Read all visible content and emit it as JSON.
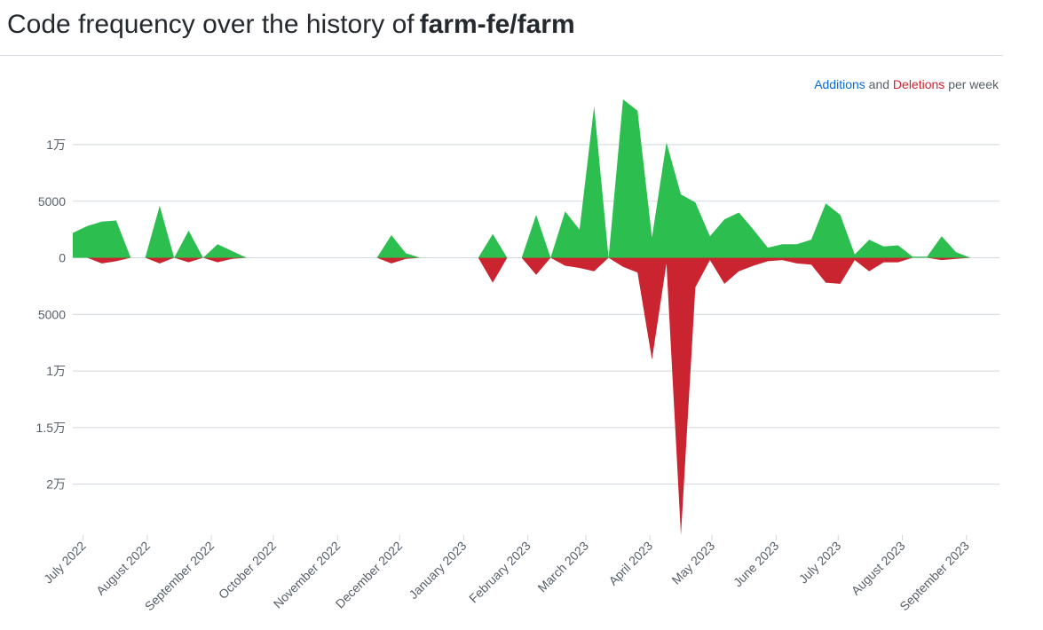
{
  "header": {
    "title_prefix": "Code frequency over the history of",
    "repo": "farm-fe/farm"
  },
  "legend": {
    "additions": "Additions",
    "and": "and",
    "deletions": "Deletions",
    "suffix": "per week"
  },
  "colors": {
    "additions": "#2cbe4e",
    "deletions": "#cb2431",
    "grid": "#d0d7de"
  },
  "chart_data": {
    "type": "area",
    "y_ticks": [
      {
        "value": 10000,
        "label": "1万"
      },
      {
        "value": 5000,
        "label": "5000"
      },
      {
        "value": 0,
        "label": "0"
      },
      {
        "value": -5000,
        "label": "5000"
      },
      {
        "value": -10000,
        "label": "1万"
      },
      {
        "value": -15000,
        "label": "1.5万"
      },
      {
        "value": -20000,
        "label": "2万"
      }
    ],
    "ylim": [
      -24500,
      14000
    ],
    "x_range": [
      "2022-06-26",
      "2023-09-17"
    ],
    "x_ticks": [
      {
        "date": "2022-07-01",
        "label": "July 2022"
      },
      {
        "date": "2022-08-01",
        "label": "August 2022"
      },
      {
        "date": "2022-09-01",
        "label": "September 2022"
      },
      {
        "date": "2022-10-01",
        "label": "October 2022"
      },
      {
        "date": "2022-11-01",
        "label": "November 2022"
      },
      {
        "date": "2022-12-01",
        "label": "December 2022"
      },
      {
        "date": "2023-01-01",
        "label": "January 2023"
      },
      {
        "date": "2023-02-01",
        "label": "February 2023"
      },
      {
        "date": "2023-03-01",
        "label": "March 2023"
      },
      {
        "date": "2023-04-01",
        "label": "April 2023"
      },
      {
        "date": "2023-05-01",
        "label": "May 2023"
      },
      {
        "date": "2023-06-01",
        "label": "June 2023"
      },
      {
        "date": "2023-07-01",
        "label": "July 2023"
      },
      {
        "date": "2023-08-01",
        "label": "August 2023"
      },
      {
        "date": "2023-09-01",
        "label": "September 2023"
      }
    ],
    "series": [
      {
        "name": "Additions",
        "points": [
          [
            "2022-06-26",
            2200
          ],
          [
            "2022-07-03",
            2800
          ],
          [
            "2022-07-10",
            3200
          ],
          [
            "2022-07-17",
            3300
          ],
          [
            "2022-07-24",
            0
          ],
          [
            "2022-07-31",
            0
          ],
          [
            "2022-08-07",
            4600
          ],
          [
            "2022-08-14",
            0
          ],
          [
            "2022-08-21",
            2400
          ],
          [
            "2022-08-28",
            0
          ],
          [
            "2022-09-04",
            1200
          ],
          [
            "2022-09-11",
            600
          ],
          [
            "2022-09-18",
            0
          ],
          [
            "2022-09-25",
            0
          ],
          [
            "2022-10-02",
            0
          ],
          [
            "2022-10-09",
            0
          ],
          [
            "2022-10-16",
            0
          ],
          [
            "2022-10-23",
            0
          ],
          [
            "2022-10-30",
            0
          ],
          [
            "2022-11-06",
            0
          ],
          [
            "2022-11-13",
            0
          ],
          [
            "2022-11-20",
            0
          ],
          [
            "2022-11-27",
            2000
          ],
          [
            "2022-12-04",
            400
          ],
          [
            "2022-12-11",
            0
          ],
          [
            "2022-12-18",
            0
          ],
          [
            "2022-12-25",
            0
          ],
          [
            "2023-01-01",
            0
          ],
          [
            "2023-01-08",
            0
          ],
          [
            "2023-01-15",
            2100
          ],
          [
            "2023-01-22",
            0
          ],
          [
            "2023-01-29",
            0
          ],
          [
            "2023-02-05",
            3800
          ],
          [
            "2023-02-12",
            0
          ],
          [
            "2023-02-19",
            4100
          ],
          [
            "2023-02-26",
            2500
          ],
          [
            "2023-03-05",
            13400
          ],
          [
            "2023-03-12",
            0
          ],
          [
            "2023-03-19",
            14000
          ],
          [
            "2023-03-26",
            13000
          ],
          [
            "2023-04-02",
            1800
          ],
          [
            "2023-04-09",
            10200
          ],
          [
            "2023-04-16",
            5600
          ],
          [
            "2023-04-23",
            4900
          ],
          [
            "2023-04-30",
            1900
          ],
          [
            "2023-05-07",
            3400
          ],
          [
            "2023-05-14",
            4000
          ],
          [
            "2023-05-21",
            2500
          ],
          [
            "2023-05-28",
            900
          ],
          [
            "2023-06-04",
            1200
          ],
          [
            "2023-06-11",
            1200
          ],
          [
            "2023-06-18",
            1600
          ],
          [
            "2023-06-25",
            4800
          ],
          [
            "2023-07-02",
            3800
          ],
          [
            "2023-07-09",
            300
          ],
          [
            "2023-07-16",
            1600
          ],
          [
            "2023-07-23",
            1000
          ],
          [
            "2023-07-30",
            1100
          ],
          [
            "2023-08-06",
            100
          ],
          [
            "2023-08-13",
            100
          ],
          [
            "2023-08-20",
            1900
          ],
          [
            "2023-08-27",
            500
          ],
          [
            "2023-09-03",
            0
          ]
        ]
      },
      {
        "name": "Deletions",
        "points": [
          [
            "2022-06-26",
            0
          ],
          [
            "2022-07-03",
            0
          ],
          [
            "2022-07-10",
            -500
          ],
          [
            "2022-07-17",
            -300
          ],
          [
            "2022-07-24",
            0
          ],
          [
            "2022-07-31",
            0
          ],
          [
            "2022-08-07",
            -500
          ],
          [
            "2022-08-14",
            0
          ],
          [
            "2022-08-21",
            -400
          ],
          [
            "2022-08-28",
            0
          ],
          [
            "2022-09-04",
            -400
          ],
          [
            "2022-09-11",
            -100
          ],
          [
            "2022-09-18",
            0
          ],
          [
            "2022-09-25",
            0
          ],
          [
            "2022-10-02",
            0
          ],
          [
            "2022-10-09",
            0
          ],
          [
            "2022-10-16",
            0
          ],
          [
            "2022-10-23",
            0
          ],
          [
            "2022-10-30",
            0
          ],
          [
            "2022-11-06",
            0
          ],
          [
            "2022-11-13",
            0
          ],
          [
            "2022-11-20",
            0
          ],
          [
            "2022-11-27",
            -500
          ],
          [
            "2022-12-04",
            -100
          ],
          [
            "2022-12-11",
            0
          ],
          [
            "2022-12-18",
            0
          ],
          [
            "2022-12-25",
            0
          ],
          [
            "2023-01-01",
            0
          ],
          [
            "2023-01-08",
            0
          ],
          [
            "2023-01-15",
            -2200
          ],
          [
            "2023-01-22",
            0
          ],
          [
            "2023-01-29",
            0
          ],
          [
            "2023-02-05",
            -1500
          ],
          [
            "2023-02-12",
            0
          ],
          [
            "2023-02-19",
            -700
          ],
          [
            "2023-02-26",
            -900
          ],
          [
            "2023-03-05",
            -1200
          ],
          [
            "2023-03-12",
            0
          ],
          [
            "2023-03-19",
            -800
          ],
          [
            "2023-03-26",
            -1300
          ],
          [
            "2023-04-02",
            -9000
          ],
          [
            "2023-04-09",
            -500
          ],
          [
            "2023-04-16",
            -24500
          ],
          [
            "2023-04-23",
            -2600
          ],
          [
            "2023-04-30",
            -200
          ],
          [
            "2023-05-07",
            -2300
          ],
          [
            "2023-05-14",
            -1200
          ],
          [
            "2023-05-21",
            -700
          ],
          [
            "2023-05-28",
            -300
          ],
          [
            "2023-06-04",
            -200
          ],
          [
            "2023-06-11",
            -500
          ],
          [
            "2023-06-18",
            -600
          ],
          [
            "2023-06-25",
            -2200
          ],
          [
            "2023-07-02",
            -2300
          ],
          [
            "2023-07-09",
            -200
          ],
          [
            "2023-07-16",
            -1200
          ],
          [
            "2023-07-23",
            -400
          ],
          [
            "2023-07-30",
            -400
          ],
          [
            "2023-08-06",
            0
          ],
          [
            "2023-08-13",
            0
          ],
          [
            "2023-08-20",
            -200
          ],
          [
            "2023-08-27",
            -100
          ],
          [
            "2023-09-03",
            0
          ]
        ]
      }
    ]
  }
}
